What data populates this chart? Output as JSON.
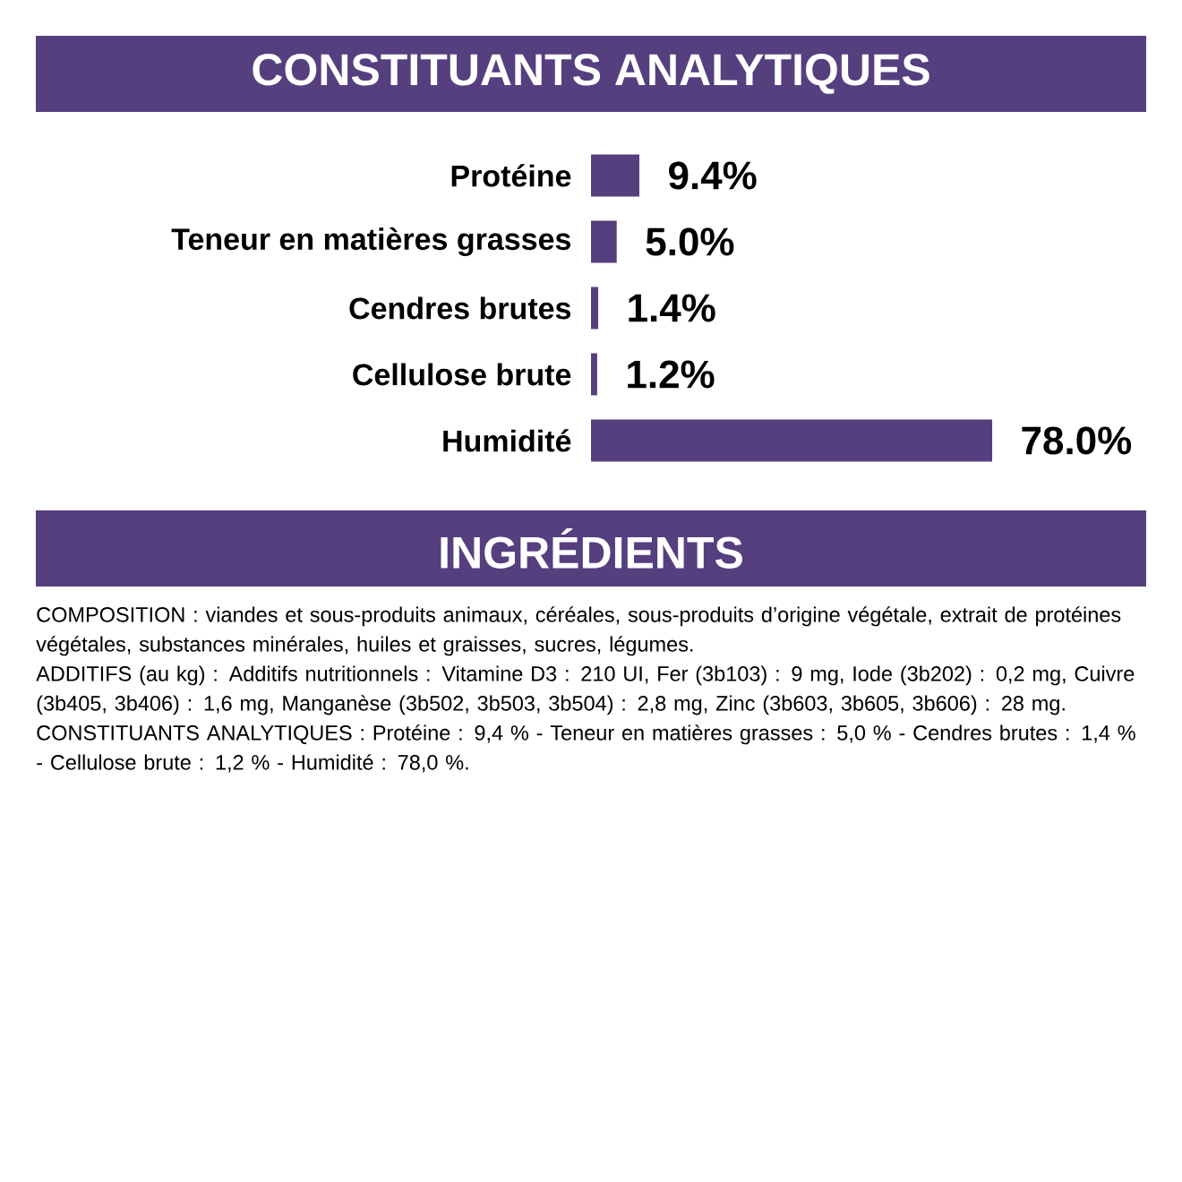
{
  "chart_data": {
    "type": "bar",
    "orientation": "horizontal",
    "title": "CONSTITUANTS ANALYTIQUES",
    "categories": [
      "Protéine",
      "Teneur en matières grasses",
      "Cendres brutes",
      "Cellulose brute",
      "Humidité"
    ],
    "values": [
      9.4,
      5.0,
      1.4,
      1.2,
      78.0
    ],
    "value_labels": [
      "9.4%",
      "5.0%",
      "1.4%",
      "1.2%",
      "78.0%"
    ],
    "color": "#563f7f",
    "annotations": [
      "INGRÉDIENTS",
      "COMPOSITION : viandes et sous-produits animaux, céréales, sous-produits d’origine végétale, extrait de protéines végétales, substances minérales, huiles et graisses, sucres, légumes.",
      "ADDITIFS (au kg) : Additifs nutritionnels : Vitamine D3 : 210 UI, Fer (3b103) : 9 mg, Iode (3b202) : 0,2 mg, Cuivre (3b405, 3b406) : 1,6 mg, Manganèse (3b502, 3b503, 3b504) : 2,8 mg, Zinc (3b603, 3b605, 3b606) : 28 mg.",
      "CONSTITUANTS ANALYTIQUES : Protéine : 9,4 % - Teneur en matières grasses : 5,0 % - Cendres brutes : 1,4 % - Cellulose brute : 1,2 % - Humidité : 78,0 %."
    ]
  }
}
